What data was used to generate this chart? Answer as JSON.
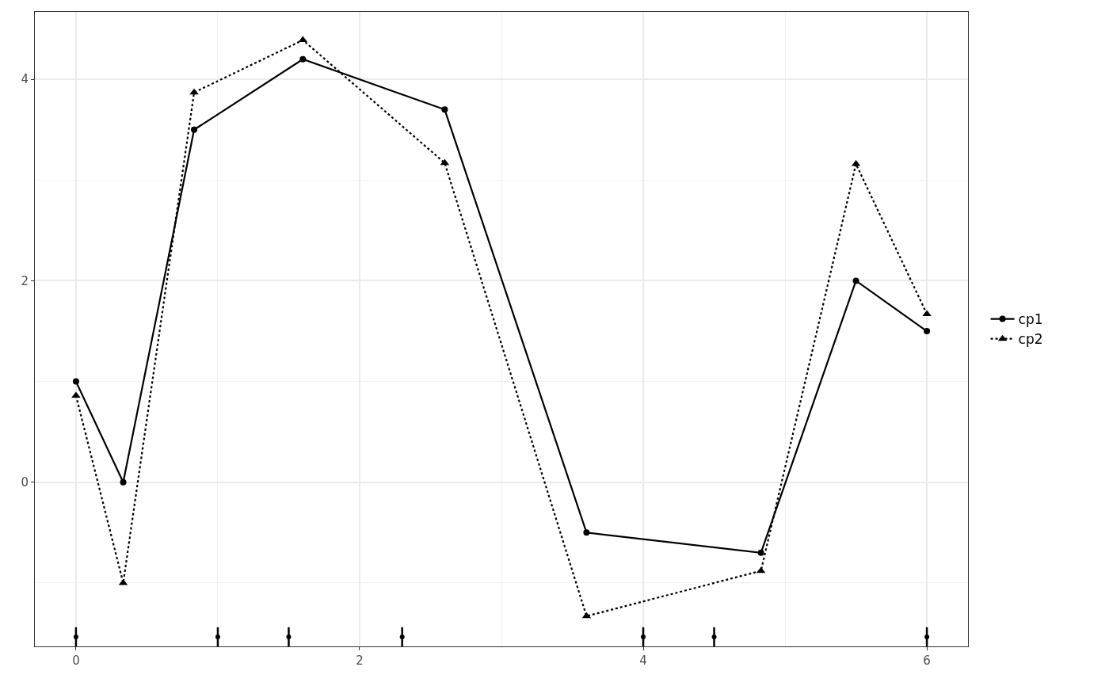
{
  "chart_data": {
    "type": "line",
    "series": [
      {
        "name": "cp1",
        "color": "#000000",
        "marker": "circle",
        "line_style": "solid",
        "x": [
          0,
          0.333,
          0.833,
          1.6,
          2.6,
          3.6,
          4.83,
          5.5,
          6
        ],
        "values": [
          1.0,
          0.0,
          3.5,
          4.2,
          3.7,
          -0.5,
          -0.7,
          2.0,
          1.5
        ]
      },
      {
        "name": "cp2",
        "color": "#000000",
        "marker": "triangle",
        "line_style": "dotted",
        "x": [
          0,
          0.333,
          0.833,
          1.6,
          2.6,
          3.6,
          4.83,
          5.5,
          6
        ],
        "values": [
          0.86,
          -1.0,
          3.87,
          4.39,
          3.17,
          -1.33,
          -0.88,
          3.16,
          1.67
        ]
      },
      {
        "type": "scatter",
        "color": "#000000",
        "x": [
          0,
          1,
          1.5,
          2.3,
          4,
          4.5,
          6
        ],
        "values": [
          -1.535,
          -1.535,
          -1.535,
          -1.535,
          -1.535,
          -1.535,
          -1.535
        ],
        "errors": [
          0.095,
          0.095,
          0.095,
          0.095,
          0.095,
          0.095,
          0.095
        ]
      }
    ],
    "xlim": [
      -0.29,
      6.29
    ],
    "xticks": [
      0,
      2,
      4,
      6
    ],
    "ylim": [
      -1.63,
      4.67
    ],
    "yticks": [
      0,
      2,
      4
    ],
    "grid": true,
    "legend": "right"
  }
}
